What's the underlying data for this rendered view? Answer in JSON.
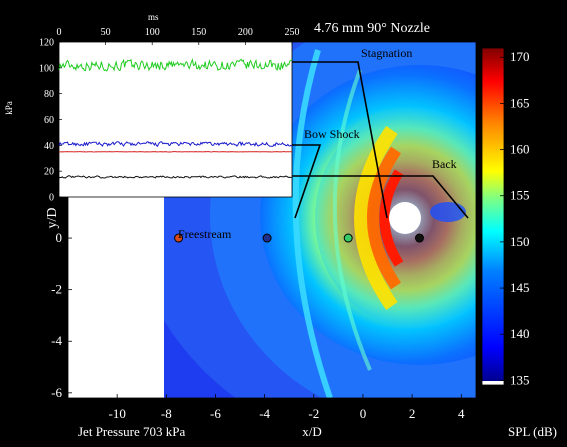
{
  "chart_data": [
    {
      "type": "heatmap",
      "title": "4.76 mm 90° Nozzle",
      "xlabel": "x/D",
      "ylabel": "y/D",
      "xlim": [
        -12,
        4.6
      ],
      "ylim": [
        -6.2,
        7.6
      ],
      "xticks": [
        -10,
        -8,
        -6,
        -4,
        -2,
        0,
        2,
        4
      ],
      "yticks": [
        -6,
        -4,
        -2,
        0
      ],
      "bottom_left_label": "Jet Pressure 703 kPa",
      "colorbar": {
        "label": "SPL (dB)",
        "min": 134.5,
        "max": 171,
        "ticks": [
          135,
          140,
          145,
          150,
          155,
          160,
          165,
          170
        ],
        "colormap": "jet",
        "colors": [
          "#00008f",
          "#0000ff",
          "#0080ff",
          "#00ffff",
          "#80ff80",
          "#ffff00",
          "#ff8000",
          "#ff0000",
          "#800000"
        ]
      },
      "probes": [
        {
          "name": "Freestream",
          "x": -7.5,
          "y": 0,
          "color": "#d84a1a"
        },
        {
          "name": "Bow Shock",
          "x": -3.9,
          "y": 0,
          "color": "#1f2f8a"
        },
        {
          "name": "Stagnation",
          "x": -0.6,
          "y": 0,
          "color": "#33cc66"
        },
        {
          "name": "Back",
          "x": 2.3,
          "y": 0,
          "color": "#111111"
        }
      ]
    },
    {
      "type": "line",
      "xlabel": "ms",
      "ylabel": "kPa",
      "xlim": [
        0,
        250
      ],
      "ylim": [
        0,
        120
      ],
      "xticks": [
        0,
        50,
        100,
        150,
        200,
        250
      ],
      "yticks": [
        0,
        20,
        40,
        60,
        80,
        100,
        120
      ],
      "series": [
        {
          "color": "#22cc22",
          "mean": 102,
          "noise": 5.5
        },
        {
          "color": "#1a1acc",
          "mean": 41,
          "noise": 2.2
        },
        {
          "color": "#d62020",
          "mean": 35,
          "noise": 0.2
        },
        {
          "color": "#111111",
          "mean": 15.5,
          "noise": 1.1
        }
      ]
    }
  ]
}
